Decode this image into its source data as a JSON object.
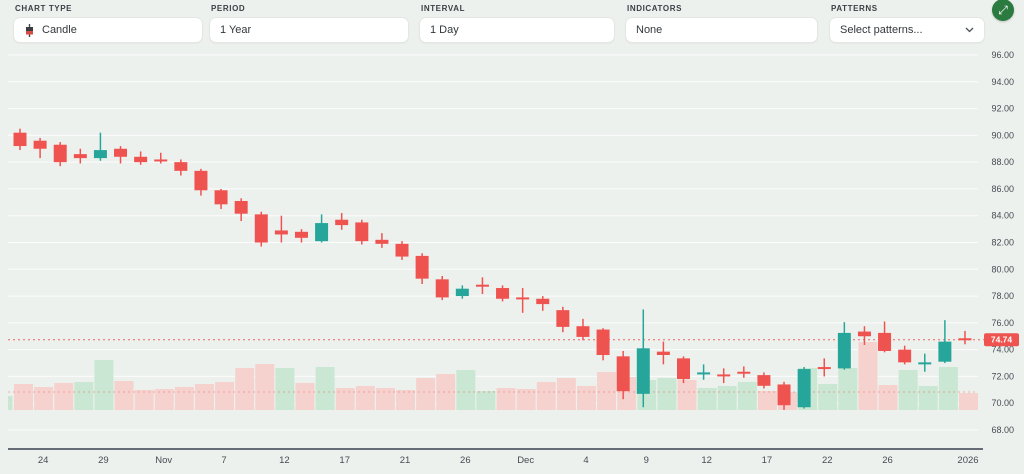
{
  "toolbar": {
    "controls": [
      {
        "id": "chart-type",
        "label": "CHART TYPE",
        "value": "Candle"
      },
      {
        "id": "period",
        "label": "PERIOD",
        "value": "1 Year"
      },
      {
        "id": "interval",
        "label": "INTERVAL",
        "value": "1 Day"
      },
      {
        "id": "indicators",
        "label": "INDICATORS",
        "value": "None"
      },
      {
        "id": "patterns",
        "label": "PATTERNS",
        "value": "Select patterns..."
      }
    ],
    "fullscreen_button": {
      "icon": "expand-arrows",
      "glyph": "⤢"
    }
  },
  "chart_data": {
    "type": "candlestick",
    "title": "",
    "grid": "horizontal",
    "legend_position": "none",
    "y_range": [
      68,
      96
    ],
    "y_ticks": [
      "96.00",
      "94.00",
      "92.00",
      "90.00",
      "88.00",
      "86.00",
      "84.00",
      "82.00",
      "80.00",
      "78.00",
      "76.00",
      "74.00",
      "72.00",
      "70.00",
      "68.00"
    ],
    "x_ticks": [
      {
        "label": "24",
        "candle": 2
      },
      {
        "label": "29",
        "candle": 5
      },
      {
        "label": "Nov",
        "candle": 8
      },
      {
        "label": "7",
        "candle": 11
      },
      {
        "label": "12",
        "candle": 14
      },
      {
        "label": "17",
        "candle": 17
      },
      {
        "label": "21",
        "candle": 20
      },
      {
        "label": "26",
        "candle": 23
      },
      {
        "label": "Dec",
        "candle": 26
      },
      {
        "label": "4",
        "candle": 29
      },
      {
        "label": "9",
        "candle": 32
      },
      {
        "label": "12",
        "candle": 35
      },
      {
        "label": "17",
        "candle": 38
      },
      {
        "label": "22",
        "candle": 41
      },
      {
        "label": "26",
        "candle": 44
      },
      {
        "label": "2026",
        "candle": 48
      }
    ],
    "last_price": {
      "value": "74.74",
      "price": 74.74
    },
    "level_line": {
      "price": 70.84
    },
    "candles": [
      [
        90.2,
        90.5,
        88.9,
        89.2
      ],
      [
        89.6,
        89.8,
        88.3,
        89.0
      ],
      [
        89.3,
        89.5,
        87.7,
        88.0
      ],
      [
        88.6,
        89.0,
        87.9,
        88.3
      ],
      [
        88.3,
        90.2,
        88.1,
        88.9
      ],
      [
        89.0,
        89.2,
        87.9,
        88.4
      ],
      [
        88.4,
        88.8,
        87.8,
        88.0
      ],
      [
        88.2,
        88.7,
        87.9,
        88.05
      ],
      [
        88.0,
        88.2,
        87.0,
        87.35
      ],
      [
        87.35,
        87.5,
        85.5,
        85.9
      ],
      [
        85.9,
        86.0,
        84.5,
        84.85
      ],
      [
        85.1,
        85.3,
        83.6,
        84.15
      ],
      [
        84.1,
        84.3,
        81.7,
        82.0
      ],
      [
        82.9,
        84.0,
        82.0,
        82.6
      ],
      [
        82.8,
        83.0,
        82.0,
        82.35
      ],
      [
        82.1,
        84.1,
        82.0,
        83.45
      ],
      [
        83.7,
        84.2,
        82.95,
        83.3
      ],
      [
        83.5,
        83.7,
        81.85,
        82.1
      ],
      [
        82.2,
        82.7,
        81.6,
        81.9
      ],
      [
        81.9,
        82.1,
        80.7,
        80.95
      ],
      [
        81.0,
        81.2,
        78.9,
        79.3
      ],
      [
        79.25,
        79.5,
        77.7,
        77.9
      ],
      [
        78.0,
        78.8,
        77.8,
        78.55
      ],
      [
        78.85,
        79.4,
        78.15,
        78.7
      ],
      [
        78.6,
        78.8,
        77.6,
        77.8
      ],
      [
        77.9,
        78.6,
        76.75,
        77.85
      ],
      [
        77.8,
        78.0,
        76.9,
        77.4
      ],
      [
        76.95,
        77.2,
        75.3,
        75.7
      ],
      [
        75.75,
        76.3,
        74.7,
        74.95
      ],
      [
        75.5,
        75.6,
        73.2,
        73.6
      ],
      [
        73.5,
        73.9,
        70.3,
        70.9
      ],
      [
        70.7,
        77.0,
        69.7,
        74.1
      ],
      [
        73.85,
        74.6,
        72.9,
        73.6
      ],
      [
        73.35,
        73.5,
        71.5,
        71.8
      ],
      [
        72.2,
        72.9,
        71.75,
        72.3
      ],
      [
        72.15,
        72.6,
        71.5,
        72.0
      ],
      [
        72.35,
        72.75,
        71.9,
        72.25
      ],
      [
        72.1,
        72.3,
        71.1,
        71.3
      ],
      [
        71.4,
        71.6,
        69.5,
        69.85
      ],
      [
        69.7,
        72.7,
        69.6,
        72.55
      ],
      [
        72.7,
        73.35,
        72.0,
        72.55
      ],
      [
        72.6,
        76.05,
        72.5,
        75.25
      ],
      [
        75.35,
        75.75,
        74.35,
        75.0
      ],
      [
        75.25,
        76.1,
        73.8,
        73.9
      ],
      [
        74.0,
        74.3,
        72.9,
        73.05
      ],
      [
        72.95,
        73.7,
        72.35,
        73.05
      ],
      [
        73.1,
        76.2,
        73.0,
        74.6
      ],
      [
        74.85,
        75.4,
        74.4,
        74.74
      ]
    ],
    "volume_rel": [
      26,
      23,
      27,
      28,
      50,
      29,
      20,
      21,
      23,
      26,
      28,
      42,
      46,
      42,
      27,
      43,
      22,
      24,
      22,
      20,
      32,
      36,
      40,
      19,
      22,
      21,
      28,
      32,
      24,
      38,
      33,
      30,
      32,
      30,
      22,
      24,
      28,
      19,
      18,
      42,
      26,
      42,
      68,
      25,
      40,
      24,
      43,
      17
    ],
    "volume_dir": [
      "r",
      "r",
      "r",
      "g",
      "g",
      "r",
      "r",
      "r",
      "r",
      "r",
      "r",
      "r",
      "r",
      "g",
      "r",
      "g",
      "r",
      "r",
      "r",
      "r",
      "r",
      "r",
      "g",
      "g",
      "r",
      "r",
      "r",
      "r",
      "r",
      "r",
      "r",
      "g",
      "g",
      "r",
      "g",
      "g",
      "g",
      "r",
      "r",
      "g",
      "g",
      "g",
      "r",
      "r",
      "g",
      "g",
      "g",
      "r"
    ],
    "clipped_left_bar": {
      "h": 14,
      "dir": "g"
    },
    "colors": {
      "up": "#26a69a",
      "down": "#ef5350",
      "vol_up": "#c9e7d2",
      "vol_down": "#f5d2ce",
      "grid": "rgba(255,255,255,0.8)",
      "axis_line": "#39414d",
      "tick_label": "#454b52",
      "price_badge": "#ef5350",
      "background": "#edf1ee",
      "accent_button": "#2b7a3f"
    }
  }
}
